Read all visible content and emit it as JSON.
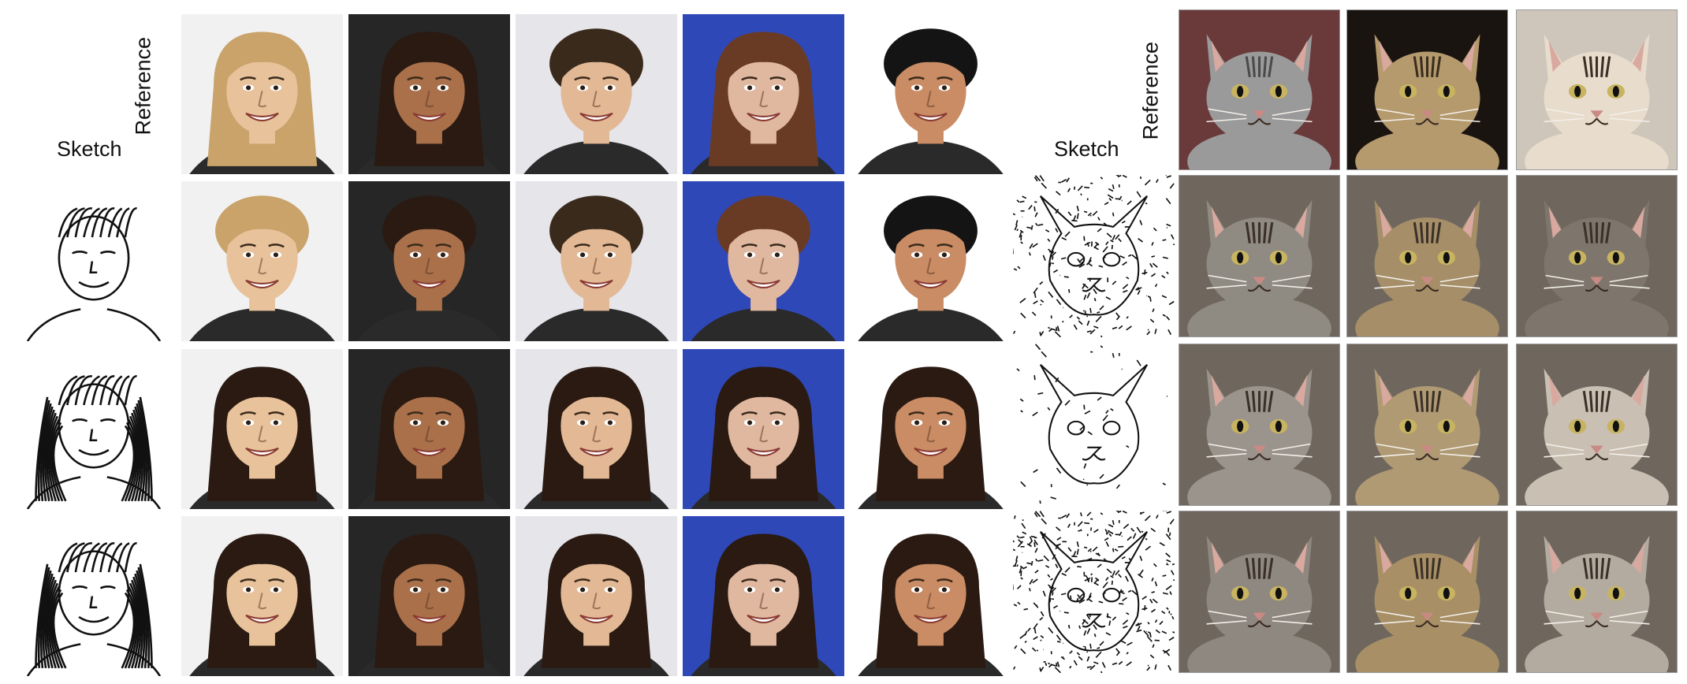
{
  "left_panel": {
    "sketch_label": "Sketch",
    "reference_label": "Reference",
    "references": [
      {
        "subject": "blonde-woman-headband",
        "background": "#f1f1f1",
        "skin": "#e8c29a",
        "hair": "#c9a36a"
      },
      {
        "subject": "dark-haired-woman",
        "background": "#262626",
        "skin": "#a9704a",
        "hair": "#2a1a12"
      },
      {
        "subject": "young-man",
        "background": "#e5e5ea",
        "skin": "#e3b894",
        "hair": "#3a2a1c"
      },
      {
        "subject": "woman-blue-background",
        "background": "#2f48b8",
        "skin": "#e0b8a0",
        "hair": "#6a3b24"
      },
      {
        "subject": "man-white-background",
        "background": "#ffffff",
        "skin": "#c98c64",
        "hair": "#141414"
      }
    ],
    "rows": [
      {
        "sketch": "boy-short-hair",
        "outputs": [
          "#f1f1f1",
          "#262626",
          "#e5e5ea",
          "#2f48b8",
          "#ffffff"
        ]
      },
      {
        "sketch": "girl-long-hair",
        "outputs": [
          "#f1f1f1",
          "#262626",
          "#e5e5ea",
          "#2f48b8",
          "#ffffff"
        ]
      },
      {
        "sketch": "woman-smiling",
        "outputs": [
          "#f1f1f1",
          "#262626",
          "#e5e5ea",
          "#2f48b8",
          "#ffffff"
        ]
      }
    ]
  },
  "right_panel": {
    "sketch_label": "Sketch",
    "reference_label": "Reference",
    "references": [
      {
        "subject": "grey-tabby-kitten",
        "fur": "#9a9a9a",
        "stripe": "#4a4a4a",
        "background": "#6a3a3a"
      },
      {
        "subject": "tabby-cat-dark",
        "fur": "#b59a6e",
        "stripe": "#3a2c1e",
        "background": "#1a1410"
      },
      {
        "subject": "siamese-cat",
        "fur": "#e8dccc",
        "stripe": "#3a2e26",
        "background": "#cfc6bb"
      }
    ],
    "rows": [
      {
        "sketch": "cat-dense-lines",
        "outputs": [
          "#8f8a82",
          "#a58e68",
          "#7e766c"
        ]
      },
      {
        "sketch": "cat-sparse-lines",
        "outputs": [
          "#9a948c",
          "#b09a74",
          "#c9bfb2"
        ]
      },
      {
        "sketch": "cat-noisy-lines",
        "outputs": [
          "#8e8880",
          "#a88f66",
          "#b4aba0"
        ]
      }
    ]
  }
}
